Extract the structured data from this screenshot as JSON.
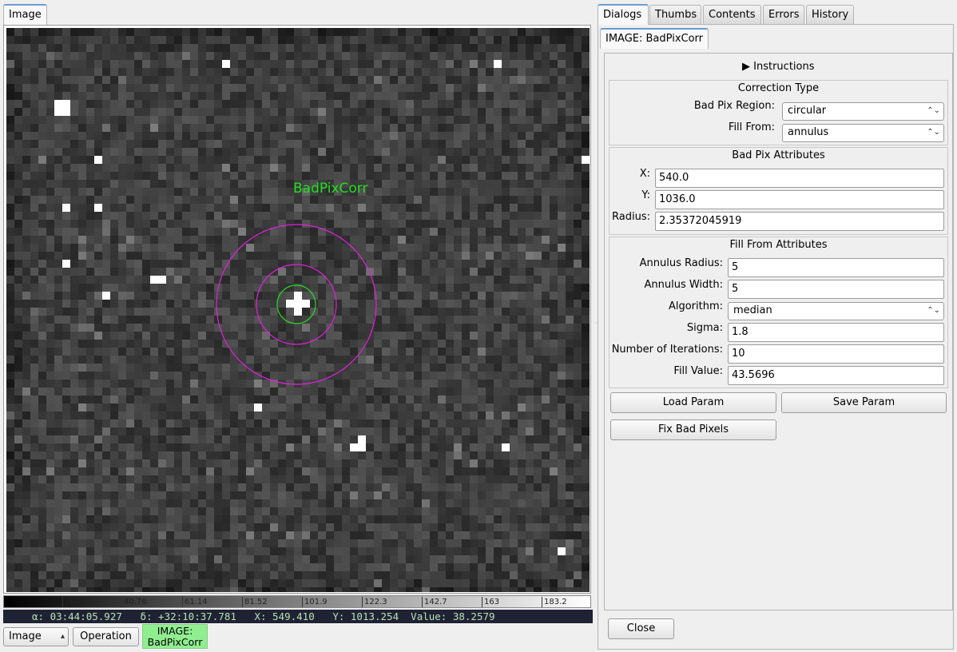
{
  "left": {
    "tab_label": "Image",
    "overlay_label": "BadPixCorr",
    "colorbar_ticks": [
      "20.38",
      "40.76",
      "61.14",
      "81.52",
      "101.9",
      "122.3",
      "142.7",
      "163",
      "183.2"
    ],
    "status": {
      "ra": "α: 03:44:05.927",
      "dec": "δ: +32:10:37.781",
      "x": "X: 549.410",
      "y": "Y: 1013.254",
      "value": "Value: 38.2579"
    },
    "image_select": "Image",
    "operation_label": "Operation",
    "active_image": [
      "IMAGE:",
      "BadPixCorr"
    ]
  },
  "right": {
    "tabs": [
      "Dialogs",
      "Thumbs",
      "Contents",
      "Errors",
      "History"
    ],
    "subtab": "IMAGE: BadPixCorr",
    "instructions": "Instructions",
    "correction": {
      "title": "Correction Type",
      "region_label": "Bad Pix Region:",
      "region_value": "circular",
      "fill_label": "Fill From:",
      "fill_value": "annulus"
    },
    "attributes": {
      "title": "Bad Pix Attributes",
      "x_label": "X:",
      "x_value": "540.0",
      "y_label": "Y:",
      "y_value": "1036.0",
      "radius_label": "Radius:",
      "radius_value": "2.35372045919"
    },
    "fill_attrs": {
      "title": "Fill From Attributes",
      "annulus_radius_label": "Annulus Radius:",
      "annulus_radius_value": "5",
      "annulus_width_label": "Annulus Width:",
      "annulus_width_value": "5",
      "algorithm_label": "Algorithm:",
      "algorithm_value": "median",
      "sigma_label": "Sigma:",
      "sigma_value": "1.8",
      "iterations_label": "Number of Iterations:",
      "iterations_value": "10",
      "fill_value_label": "Fill Value:",
      "fill_value_value": "43.5696"
    },
    "buttons": {
      "load": "Load Param",
      "save": "Save Param",
      "fix": "Fix Bad Pixels",
      "close": "Close"
    }
  },
  "colors": {
    "marker_magenta": "#e020e0",
    "marker_green": "#22dd22",
    "status_bg": "#1f2233",
    "status_fg": "#b8e2b8",
    "active_bg": "#90ee90"
  }
}
